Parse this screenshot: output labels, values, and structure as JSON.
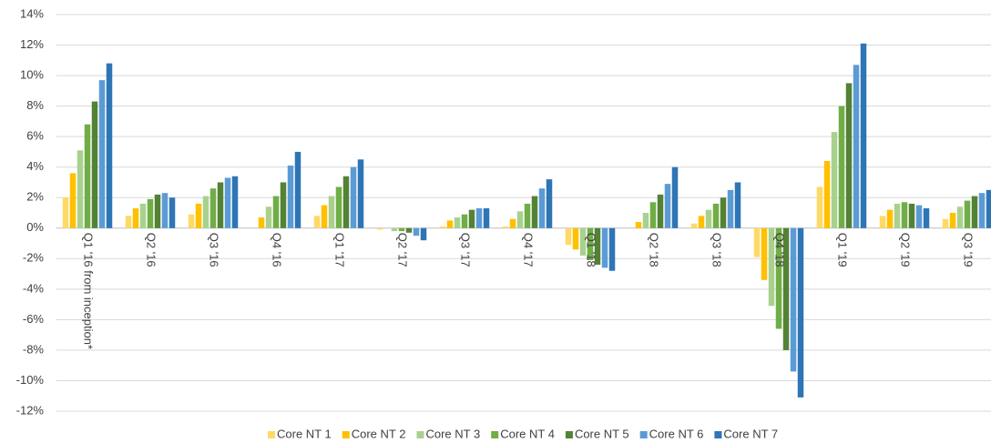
{
  "chart_data": {
    "type": "bar",
    "categories": [
      "Q1 '16 from inception*",
      "Q2 '16",
      "Q3 '16",
      "Q4 '16",
      "Q1 '17",
      "Q2 '17",
      "Q3 '17",
      "Q4 '17",
      "Q1 '18",
      "Q2 '18",
      "Q3 '18",
      "Q4 '18",
      "Q1 '19",
      "Q2 '19",
      "Q3 '19"
    ],
    "series": [
      {
        "name": "Core NT 1",
        "color": "#ffd966",
        "values": [
          2.0,
          0.8,
          0.9,
          0.0,
          0.8,
          -0.1,
          0.1,
          0.1,
          -1.1,
          0.0,
          0.3,
          -1.9,
          2.7,
          0.8,
          0.6
        ]
      },
      {
        "name": "Core NT 2",
        "color": "#ffc000",
        "values": [
          3.6,
          1.3,
          1.6,
          0.7,
          1.5,
          0.0,
          0.5,
          0.6,
          -1.4,
          0.4,
          0.8,
          -3.4,
          4.4,
          1.2,
          1.0
        ]
      },
      {
        "name": "Core NT 3",
        "color": "#a9d18e",
        "values": [
          5.1,
          1.6,
          2.1,
          1.4,
          2.1,
          -0.2,
          0.7,
          1.1,
          -1.8,
          1.0,
          1.2,
          -5.1,
          6.3,
          1.6,
          1.4
        ]
      },
      {
        "name": "Core NT 4",
        "color": "#70ad47",
        "values": [
          6.8,
          1.9,
          2.6,
          2.1,
          2.7,
          -0.2,
          0.9,
          1.6,
          -2.1,
          1.7,
          1.6,
          -6.6,
          8.0,
          1.7,
          1.8
        ]
      },
      {
        "name": "Core NT 5",
        "color": "#548235",
        "values": [
          8.3,
          2.2,
          3.0,
          3.0,
          3.4,
          -0.3,
          1.2,
          2.1,
          -2.4,
          2.2,
          2.0,
          -8.0,
          9.5,
          1.6,
          2.1
        ]
      },
      {
        "name": "Core NT 6",
        "color": "#5b9bd5",
        "values": [
          9.7,
          2.3,
          3.3,
          4.1,
          4.0,
          -0.5,
          1.3,
          2.6,
          -2.6,
          2.9,
          2.5,
          -9.4,
          10.7,
          1.5,
          2.3
        ]
      },
      {
        "name": "Core NT 7",
        "color": "#2e75b6",
        "values": [
          10.8,
          2.0,
          3.4,
          5.0,
          4.5,
          -0.8,
          1.3,
          3.2,
          -2.8,
          4.0,
          3.0,
          -11.1,
          12.1,
          1.3,
          2.5
        ]
      }
    ],
    "ylim": [
      -12,
      14
    ],
    "yticks": [
      {
        "value": -12,
        "label": "-12%"
      },
      {
        "value": -10,
        "label": "-10%"
      },
      {
        "value": -8,
        "label": "-8%"
      },
      {
        "value": -6,
        "label": "-6%"
      },
      {
        "value": -4,
        "label": "-4%"
      },
      {
        "value": -2,
        "label": "-2%"
      },
      {
        "value": 0,
        "label": "0%"
      },
      {
        "value": 2,
        "label": "2%"
      },
      {
        "value": 4,
        "label": "4%"
      },
      {
        "value": 6,
        "label": "6%"
      },
      {
        "value": 8,
        "label": "8%"
      },
      {
        "value": 10,
        "label": "10%"
      },
      {
        "value": 12,
        "label": "12%"
      },
      {
        "value": 14,
        "label": "14%"
      }
    ],
    "grid": true,
    "legend": "bottom"
  }
}
